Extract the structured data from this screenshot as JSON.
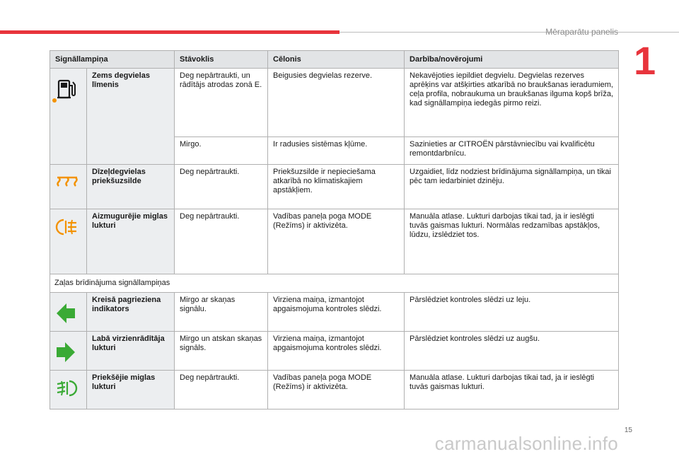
{
  "header": {
    "section_title": "Mēraparātu panelis",
    "chapter_number": "1"
  },
  "page_number": "15",
  "watermark": "carmanualsonline.info",
  "table": {
    "columns": [
      "Signāllampiņa",
      "Stāvoklis",
      "Cēlonis",
      "Darbība/novērojumi"
    ],
    "rows": [
      {
        "icon": "fuel-pump-icon",
        "name": "Zems degvielas līmenis",
        "state1": "Deg nepārtraukti, un rādītājs atrodas zonā E.",
        "cause1": "Beigusies degvielas rezerve.",
        "action1": "Nekavējoties iepildiet degvielu. Degvielas rezerves aprēķins var atšķirties atkarībā no braukšanas ieradumiem, ceļa profila, nobraukuma un braukšanas ilguma kopš brīža, kad signāllampiņa iedegās pirmo reizi.",
        "state2": "Mirgo.",
        "cause2": "Ir radusies sistēmas kļūme.",
        "action2": "Sazinieties ar CITROËN pārstāvniecību vai kvalificētu remontdarbnīcu."
      },
      {
        "icon": "glow-plug-icon",
        "name": "Dīzeļdegvielas priekšuzsilde",
        "state": "Deg nepārtraukti.",
        "cause": "Priekšuzsilde ir nepieciešama atkarībā no klimatiskajiem apstākļiem.",
        "action": "Uzgaidiet, līdz nodziest brīdinājuma signāllampiņa, un tikai pēc tam iedarbiniet dzinēju."
      },
      {
        "icon": "rear-fog-light-icon",
        "name": "Aizmugurējie miglas lukturi",
        "state": "Deg nepārtraukti.",
        "cause": "Vadības paneļa poga MODE (Režīms) ir aktivizēta.",
        "action": "Manuāla atlase. Lukturi darbojas tikai tad, ja ir ieslēgti tuvās gaismas lukturi. Normālas redzamības apstākļos, lūdzu, izslēdziet tos."
      }
    ],
    "group_label": "Zaļas brīdinājuma signāllampiņas",
    "green_rows": [
      {
        "icon": "left-turn-indicator-icon",
        "name": "Kreisā pagrieziena indikators",
        "state": "Mirgo ar skaņas signālu.",
        "cause": "Virziena maiņa, izmantojot apgaismojuma kontroles slēdzi.",
        "action": "Pārslēdziet kontroles slēdzi uz leju."
      },
      {
        "icon": "right-turn-indicator-icon",
        "name": "Labā virzienrādītāja lukturi",
        "state": "Mirgo un atskan skaņas signāls.",
        "cause": "Virziena maiņa, izmantojot apgaismojuma kontroles slēdzi.",
        "action": "Pārslēdziet kontroles slēdzi uz augšu."
      },
      {
        "icon": "front-fog-light-icon",
        "name": "Priekšējie miglas lukturi",
        "state": "Deg nepārtraukti.",
        "cause": "Vadības paneļa poga MODE (Režīms) ir aktivizēta.",
        "action": "Manuāla atlase. Lukturi darbojas tikai tad, ja ir ieslēgti tuvās gaismas lukturi."
      }
    ]
  },
  "colors": {
    "accent_red": "#e8343c",
    "warning_orange": "#f39200",
    "indicator_green": "#3aaa35"
  }
}
